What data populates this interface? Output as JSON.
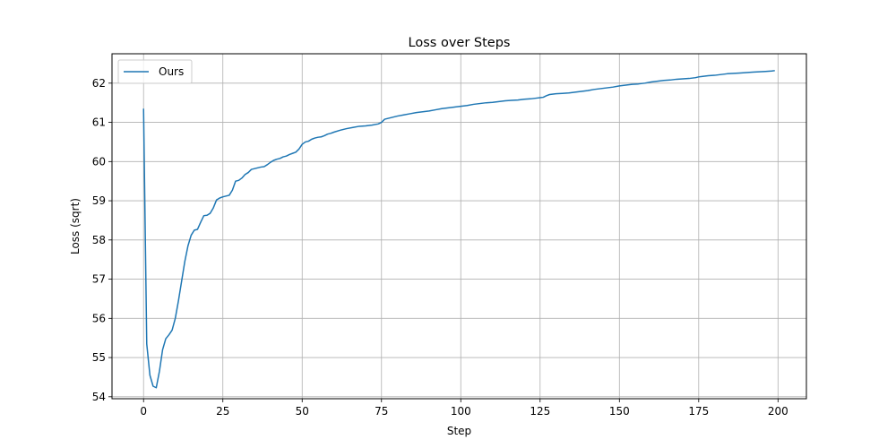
{
  "chart_data": {
    "type": "line",
    "title": "Loss over Steps",
    "xlabel": "Step",
    "ylabel": "Loss (sqrt)",
    "xlim": [
      -9.95,
      208.95
    ],
    "ylim": [
      53.95,
      62.75
    ],
    "xticks": [
      0,
      25,
      50,
      75,
      100,
      125,
      150,
      175,
      200
    ],
    "yticks": [
      54,
      55,
      56,
      57,
      58,
      59,
      60,
      61,
      62
    ],
    "grid": true,
    "legend": "top-left",
    "series": [
      {
        "name": "Ours",
        "color": "#1f77b4",
        "x": [
          0,
          1,
          2,
          3,
          4,
          5,
          6,
          7,
          8,
          9,
          10,
          11,
          12,
          13,
          14,
          15,
          16,
          17,
          18,
          19,
          20,
          21,
          22,
          23,
          24,
          25,
          26,
          27,
          28,
          29,
          30,
          31,
          32,
          33,
          34,
          35,
          36,
          37,
          38,
          39,
          40,
          41,
          42,
          43,
          44,
          45,
          46,
          47,
          48,
          49,
          50,
          51,
          52,
          53,
          54,
          55,
          56,
          57,
          58,
          59,
          60,
          62,
          64,
          66,
          68,
          70,
          72,
          74,
          75,
          76,
          78,
          80,
          82,
          84,
          86,
          88,
          90,
          92,
          94,
          96,
          98,
          100,
          102,
          104,
          106,
          108,
          110,
          112,
          114,
          116,
          118,
          120,
          122,
          124,
          125,
          126,
          127,
          128,
          130,
          132,
          134,
          136,
          138,
          140,
          142,
          144,
          146,
          148,
          150,
          152,
          154,
          156,
          158,
          160,
          162,
          164,
          166,
          168,
          170,
          172,
          174,
          175,
          176,
          178,
          180,
          182,
          184,
          186,
          188,
          190,
          192,
          194,
          196,
          198,
          199
        ],
        "values": [
          61.35,
          55.35,
          54.55,
          54.27,
          54.23,
          54.65,
          55.2,
          55.48,
          55.58,
          55.7,
          56.0,
          56.45,
          56.95,
          57.45,
          57.85,
          58.12,
          58.25,
          58.27,
          58.45,
          58.62,
          58.63,
          58.68,
          58.82,
          59.02,
          59.07,
          59.1,
          59.12,
          59.14,
          59.27,
          59.5,
          59.52,
          59.58,
          59.67,
          59.72,
          59.8,
          59.82,
          59.84,
          59.86,
          59.87,
          59.92,
          59.98,
          60.03,
          60.06,
          60.08,
          60.12,
          60.14,
          60.18,
          60.21,
          60.24,
          60.32,
          60.44,
          60.5,
          60.52,
          60.57,
          60.6,
          60.62,
          60.63,
          60.66,
          60.7,
          60.72,
          60.75,
          60.8,
          60.84,
          60.87,
          60.9,
          60.91,
          60.93,
          60.96,
          61.0,
          61.08,
          61.12,
          61.16,
          61.19,
          61.22,
          61.25,
          61.27,
          61.29,
          61.32,
          61.35,
          61.37,
          61.39,
          61.41,
          61.43,
          61.46,
          61.48,
          61.5,
          61.51,
          61.53,
          61.55,
          61.56,
          61.57,
          61.59,
          61.6,
          61.62,
          61.63,
          61.64,
          61.68,
          61.71,
          61.73,
          61.74,
          61.75,
          61.77,
          61.79,
          61.81,
          61.84,
          61.86,
          61.88,
          61.9,
          61.93,
          61.95,
          61.97,
          61.98,
          62.0,
          62.03,
          62.05,
          62.07,
          62.08,
          62.1,
          62.11,
          62.12,
          62.14,
          62.16,
          62.17,
          62.19,
          62.2,
          62.22,
          62.24,
          62.25,
          62.26,
          62.27,
          62.28,
          62.29,
          62.3,
          62.31,
          62.32
        ]
      }
    ]
  }
}
